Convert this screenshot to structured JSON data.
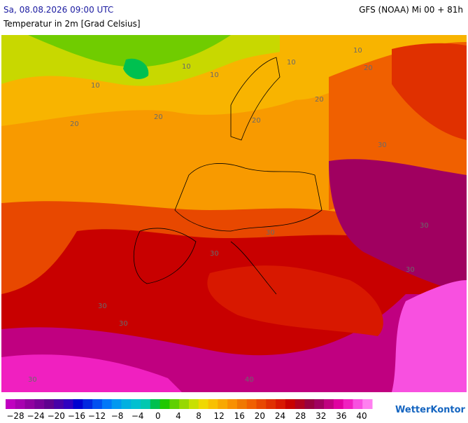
{
  "header": {
    "datetime": "Sa, 08.08.2026 09:00 UTC",
    "model": "GFS (NOAA) Mi 00 + 81h",
    "parameter": "Temperatur in 2m [Grad Celsius]"
  },
  "map": {
    "contour_labels": [
      "10",
      "10",
      "10",
      "10",
      "10",
      "20",
      "20",
      "20",
      "20",
      "20",
      "30",
      "30",
      "30",
      "30",
      "30",
      "30",
      "30",
      "30",
      "40"
    ]
  },
  "legend": {
    "labels": [
      "−28",
      "−24",
      "−20",
      "−16",
      "−12",
      "−8",
      "−4",
      "0",
      "4",
      "8",
      "12",
      "16",
      "20",
      "24",
      "28",
      "32",
      "36",
      "40"
    ],
    "colors": [
      "#c000c0",
      "#a800b0",
      "#9000a0",
      "#780098",
      "#600090",
      "#4800a8",
      "#3000c0",
      "#0000d0",
      "#0028e0",
      "#0050f0",
      "#0078f8",
      "#0098f0",
      "#00b0e0",
      "#00c0d0",
      "#00c8b0",
      "#00c050",
      "#20c800",
      "#60d000",
      "#98d800",
      "#c8e000",
      "#f0d800",
      "#f8c000",
      "#f8a800",
      "#f89000",
      "#f07800",
      "#f06000",
      "#e84800",
      "#e03000",
      "#d81800",
      "#c80000",
      "#b00020",
      "#980040",
      "#a00060",
      "#c00080",
      "#e000a0",
      "#f020c0",
      "#f850e0",
      "#ff80f0"
    ]
  },
  "brand": "WetterKontor"
}
